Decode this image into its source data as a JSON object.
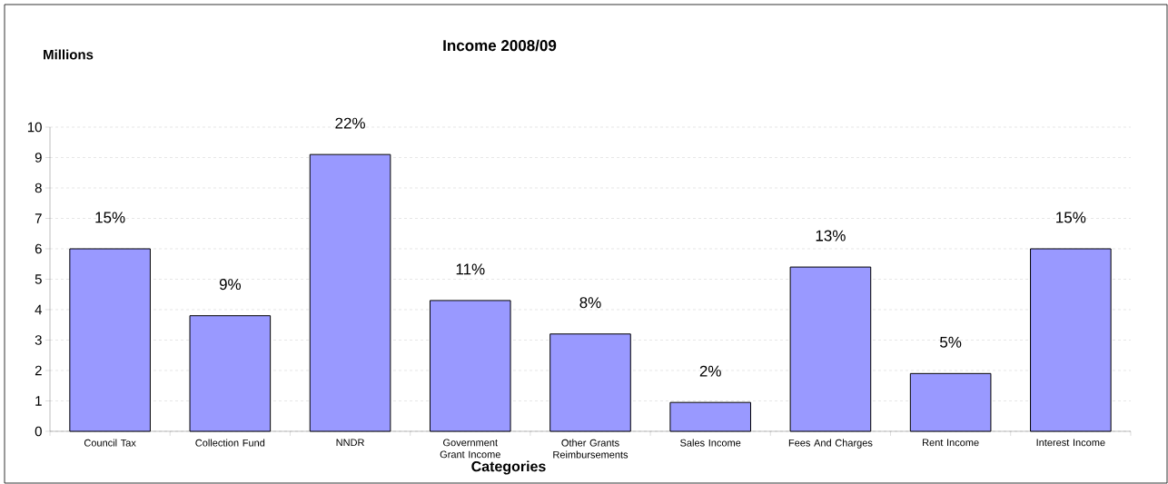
{
  "chart_data": {
    "type": "bar",
    "title": "Income 2008/09",
    "ylabel": "Millions",
    "xlabel": "Categories",
    "categories": [
      "Council Tax",
      "Collection Fund",
      "NNDR",
      "Government Grant Income",
      "Other Grants Reimbursements",
      "Sales Income",
      "Fees And Charges",
      "Rent Income",
      "Interest Income"
    ],
    "values": [
      6.0,
      3.8,
      9.1,
      4.3,
      3.2,
      0.95,
      5.4,
      1.9,
      6.0
    ],
    "annotations": [
      {
        "text": "15%",
        "x": "Council Tax",
        "y": 6.0
      },
      {
        "text": "9%",
        "x": "Collection Fund",
        "y": 3.8
      },
      {
        "text": "22%",
        "x": "NNDR",
        "y": 9.1
      },
      {
        "text": "11%",
        "x": "Government Grant Income",
        "y": 4.3
      },
      {
        "text": "8%",
        "x": "Other Grants Reimbursements",
        "y": 3.2
      },
      {
        "text": "2%",
        "x": "Sales Income",
        "y": 0.95
      },
      {
        "text": "13%",
        "x": "Fees And Charges",
        "y": 5.4
      },
      {
        "text": "5%",
        "x": "Rent Income",
        "y": 1.9
      },
      {
        "text": "15%",
        "x": "Interest Income",
        "y": 6.0
      }
    ],
    "color": "#9999ff",
    "ylim": [
      0,
      10
    ],
    "yticks": [
      0,
      1,
      2,
      3,
      4,
      5,
      6,
      7,
      8,
      9,
      10
    ],
    "grid": "y"
  }
}
